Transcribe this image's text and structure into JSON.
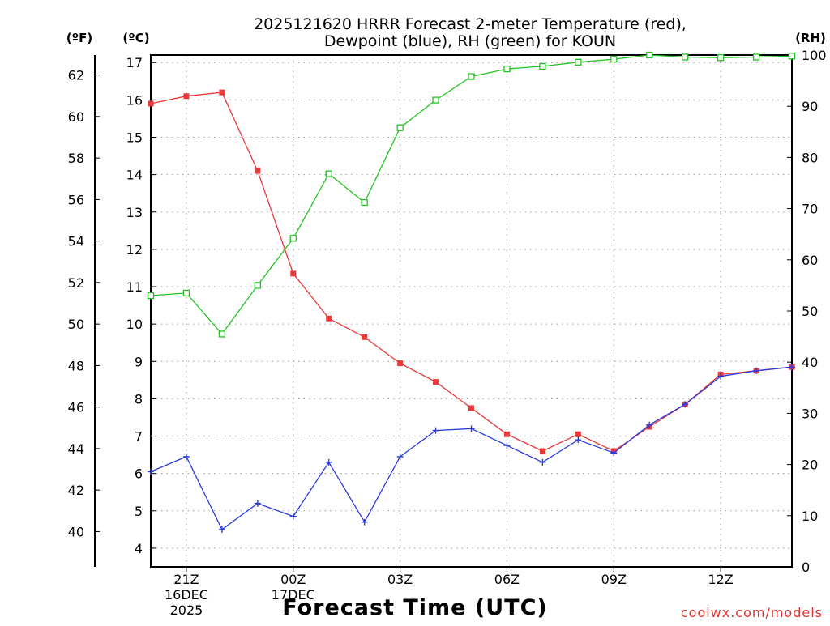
{
  "colors": {
    "temp": "#e83a3a",
    "dewpoint": "#2b3be0",
    "rh": "#22c422",
    "credit": "#e03030"
  },
  "chart_data": {
    "type": "line",
    "title_lines": [
      "2025121620 HRRR Forecast 2-meter Temperature (red),",
      "Dewpoint (blue), RH (green) for KOUN"
    ],
    "units": {
      "fahrenheit": "(ºF)",
      "celsius": "(ºC)",
      "rh": "(RH)"
    },
    "xlabel": "Forecast Time (UTC)",
    "credit": "coolwx.com/models",
    "x_hours": [
      20,
      21,
      22,
      23,
      24,
      25,
      26,
      27,
      28,
      29,
      30,
      31,
      32,
      33,
      34,
      35,
      36,
      37,
      38
    ],
    "xlim": [
      20,
      38
    ],
    "x_ticks": [
      {
        "hour": 21,
        "lines": [
          "21Z",
          "16DEC",
          "2025"
        ]
      },
      {
        "hour": 24,
        "lines": [
          "00Z",
          "17DEC"
        ]
      },
      {
        "hour": 27,
        "lines": [
          "03Z"
        ]
      },
      {
        "hour": 30,
        "lines": [
          "06Z"
        ]
      },
      {
        "hour": 33,
        "lines": [
          "09Z"
        ]
      },
      {
        "hour": 36,
        "lines": [
          "12Z"
        ]
      }
    ],
    "celsius_range": [
      3.5,
      17.2
    ],
    "celsius_ticks": [
      "4",
      "5",
      "6",
      "7",
      "8",
      "9",
      "10",
      "11",
      "12",
      "13",
      "14",
      "15",
      "16",
      "17"
    ],
    "fahrenheit_ticks": [
      "40",
      "42",
      "44",
      "46",
      "48",
      "50",
      "52",
      "54",
      "56",
      "58",
      "60",
      "62"
    ],
    "rh_range": [
      0,
      100
    ],
    "rh_ticks": [
      "0",
      "10",
      "20",
      "30",
      "40",
      "50",
      "60",
      "70",
      "80",
      "90",
      "100"
    ],
    "series": [
      {
        "name": "Temperature",
        "units": "C",
        "marker": "filled-square",
        "values": [
          15.9,
          16.1,
          16.2,
          14.1,
          11.35,
          10.15,
          9.65,
          8.95,
          8.45,
          7.75,
          7.05,
          6.6,
          7.05,
          6.6,
          7.25,
          7.85,
          8.65,
          8.75,
          8.85
        ]
      },
      {
        "name": "Dewpoint",
        "units": "C",
        "marker": "plus",
        "values": [
          6.05,
          6.45,
          4.5,
          5.2,
          4.85,
          6.3,
          4.7,
          6.45,
          7.15,
          7.2,
          6.75,
          6.3,
          6.9,
          6.55,
          7.3,
          7.85,
          8.6,
          8.75,
          8.85
        ]
      },
      {
        "name": "RH",
        "units": "%",
        "marker": "open-square",
        "values": [
          53,
          53.5,
          45.5,
          55,
          64.2,
          76.8,
          71.2,
          85.8,
          91.2,
          95.8,
          97.3,
          97.8,
          98.6,
          99.2,
          100,
          99.6,
          99.5,
          99.6,
          99.8
        ]
      }
    ]
  }
}
